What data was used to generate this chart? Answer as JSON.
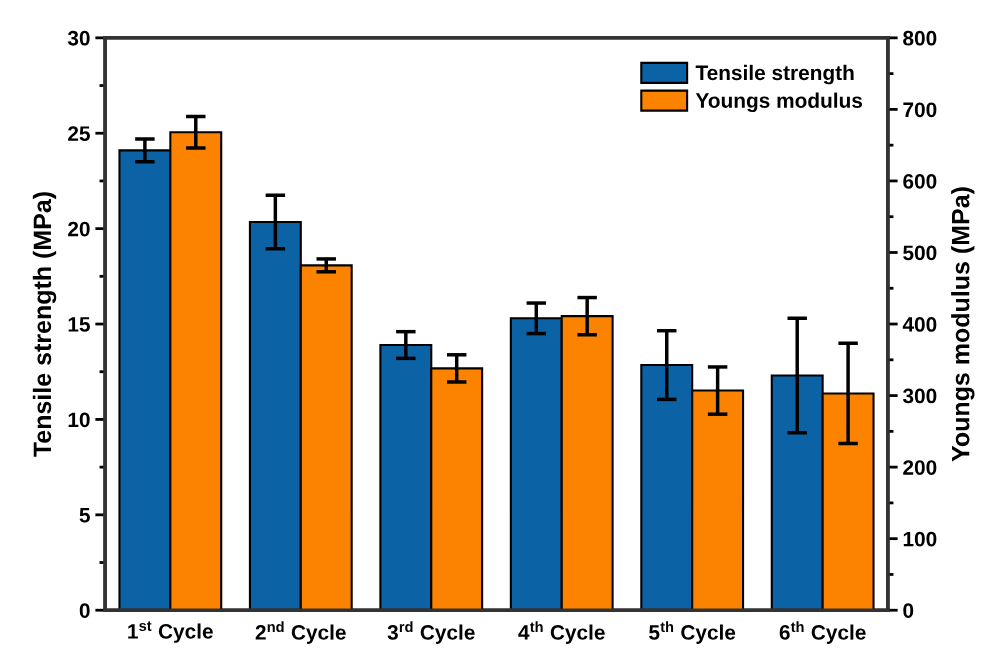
{
  "chart_data": {
    "type": "bar",
    "categories": [
      "1$^{st}$ Cycle",
      "2$^{nd}$ Cycle",
      "3$^{rd}$ Cycle",
      "4$^{th}$ Cycle",
      "5$^{th}$ Cycle",
      "6$^{th}$ Cycle"
    ],
    "series": [
      {
        "name": "Tensile strength",
        "color": "#0b62a4",
        "axis": "y",
        "values": [
          24.1,
          20.35,
          13.9,
          15.3,
          12.85,
          12.3
        ],
        "errors": [
          0.6,
          1.4,
          0.7,
          0.8,
          1.8,
          3.0
        ]
      },
      {
        "name": "Youngs modulus",
        "color": "#fb8300",
        "axis": "y2",
        "values": [
          668,
          482,
          338,
          411,
          307,
          303
        ],
        "errors": [
          22,
          9,
          19,
          26,
          33,
          70
        ]
      }
    ],
    "ylabel": "Tensile strength (MPa)",
    "y2label": "Youngs modulus (MPa)",
    "ylim": [
      0,
      30
    ],
    "yticks": [
      0,
      {
        "value": 2.5,
        "label": null
      },
      5,
      {
        "value": 7.5,
        "label": null
      },
      10,
      {
        "value": 12.5,
        "label": null
      },
      15,
      {
        "value": 17.5,
        "label": null
      },
      20,
      {
        "value": 22.5,
        "label": null
      },
      25,
      {
        "value": 27.5,
        "label": null
      },
      30
    ],
    "y2lim": [
      0,
      800
    ],
    "y2ticks": [
      0,
      {
        "value": 50,
        "label": null
      },
      100,
      {
        "value": 150,
        "label": null
      },
      200,
      {
        "value": 250,
        "label": null
      },
      300,
      {
        "value": 350,
        "label": null
      },
      400,
      {
        "value": 450,
        "label": null
      },
      500,
      {
        "value": 550,
        "label": null
      },
      600,
      {
        "value": 650,
        "label": null
      },
      700,
      {
        "value": 750,
        "label": null
      },
      800
    ],
    "legend": "top right",
    "grid": false
  }
}
